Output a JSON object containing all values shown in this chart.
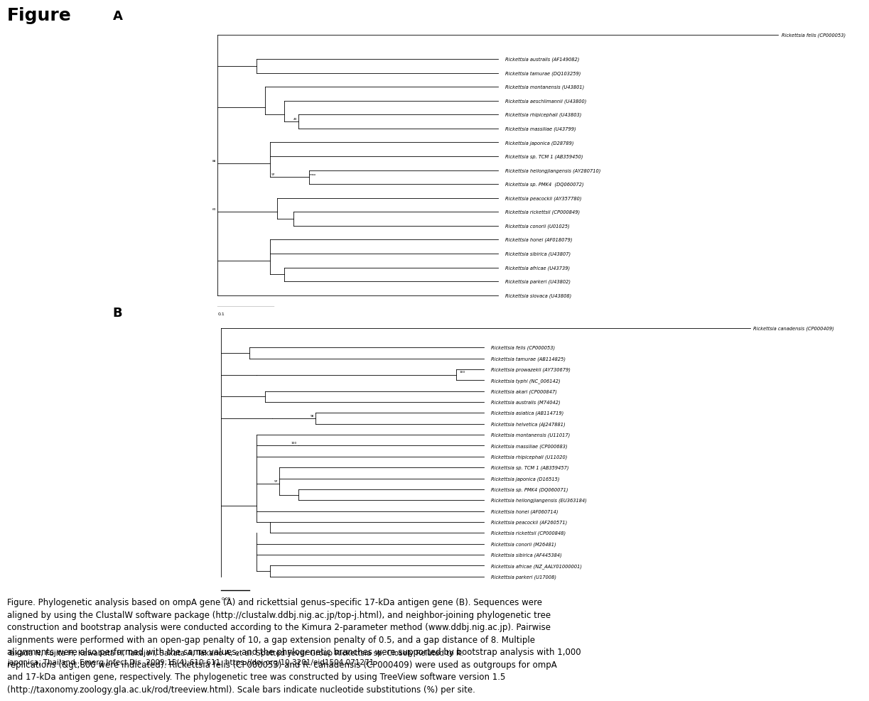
{
  "title": "Figure",
  "background_color": "#ffffff",
  "line_color": "#000000",
  "text_color": "#000000",
  "caption_fontsize": 8.5,
  "citation_fontsize": 7.5,
  "title_fontsize": 18,
  "tree_lw": 0.6,
  "tree_fs": 4.8,
  "panel_fs": 13,
  "tree_a": {
    "outgroup_label": "Rickettsia felis (CP000053)",
    "taxa": [
      "Rickettsia australis (AF149082)",
      "Rickettsia tamurae (DQ103259)",
      "Rickettsia montanensis (U43801)",
      "Rickettsia aeschlimannii (U43800)",
      "Rickettsia rhipicephali (U43803)",
      "Rickettsia massiliae (U43799)",
      "Rickettsia japonica (D28789)",
      "Rickettsia sp. TCM 1 (AB359450)",
      "Rickettsia heilongjiangensis (AY280710)",
      "Rickettsia sp. PMK4  (DQ060072)",
      "Rickettsia peacockii (AY357780)",
      "Rickettsia rickettsii (CP000849)",
      "Rickettsia conorii (U01025)",
      "Rickettsia honei (AF018079)",
      "Rickettsia sibirica (U43807)",
      "Rickettsia africae (U43739)",
      "Rickettsia parkeri (U43802)",
      "Rickettsia slovaca (U43808)"
    ],
    "scale_label": "0.1"
  },
  "tree_b": {
    "outgroup_label": "Rickettsia canadensis (CP000409)",
    "taxa": [
      "Rickettsia felis (CP000053)",
      "Rickettsia tamurae (AB114825)",
      "Rickettsia prowazekii (AY730679)",
      "Rickettsia typhi (NC_006142)",
      "Rickettsia akari (CP000847)",
      "Rickettsia australis (M74042)",
      "Rickettsia asiatica (AB114719)",
      "Rickettsia helvetica (AJ247881)",
      "Rickettsia montanensis (U11017)",
      "Rickettsia massiliae (CP000683)",
      "Rickettsia rhipicephali (U11020)",
      "Rickettsia sp. TCM 1 (AB359457)",
      "Rickettsia japonica (D16515)",
      "Rickettsia sp. PMK4 (DQ060071)",
      "Rickettsia heilongjiangensis (EU363184)",
      "Rickettsia honei (AF060714)",
      "Rickettsia peacockii (AF260571)",
      "Rickettsia rickettsii (CP000848)",
      "Rickettsia conorii (M26481)",
      "Rickettsia sibirica (AF445384)",
      "Rickettsia africae (NZ_AALY01000001)",
      "Rickettsia parkeri (U17008)"
    ],
    "scale_label": "0.05"
  },
  "caption": "Figure. Phylogenetic analysis based on ompA gene (A) and rickettsial genus–specific 17-kDa antigen gene (B). Sequences were aligned by using the ClustalW software package (http://clustalw.ddbj.nig.ac.jp/top-j.html), and neighbor-joining phylogenetic tree construction and bootstrap analysis were conducted according to the Kimura 2-parameter method (www.ddbj.nig.ac.jp). Pairwise alignments were performed with an open-gap penalty of 10, a gap extension penalty of 0.5, and a gap distance of 8. Multiple alignments were also performed with the same values, and the phylogenetic branches were supported by bootstrap analysis with 1,000 replications (&gt;800 were indicated). Rickettsia felis (CP000053) and R. canadensis (CP000409) were used as outgroups for ompA and 17-kDa antigen gene, respectively. The phylogenetic tree was constructed by using TreeView software version 1.5 (http://taxonomy.zoology.gla.ac.uk/rod/treeview.html). Scale bars indicate nucleotide substitutions (%) per site.",
  "citation": "Takada N, Fujita H, Kawabata H, Takajo I, Sakata A, Takano A, et al. Spotted Fever Group Rickettsia sp. Closely Related to R. japonica, Thailand. Emerg Infect Dis. 2009;15(4):610-611. https://doi.org/10.3201/eid1504.071271"
}
